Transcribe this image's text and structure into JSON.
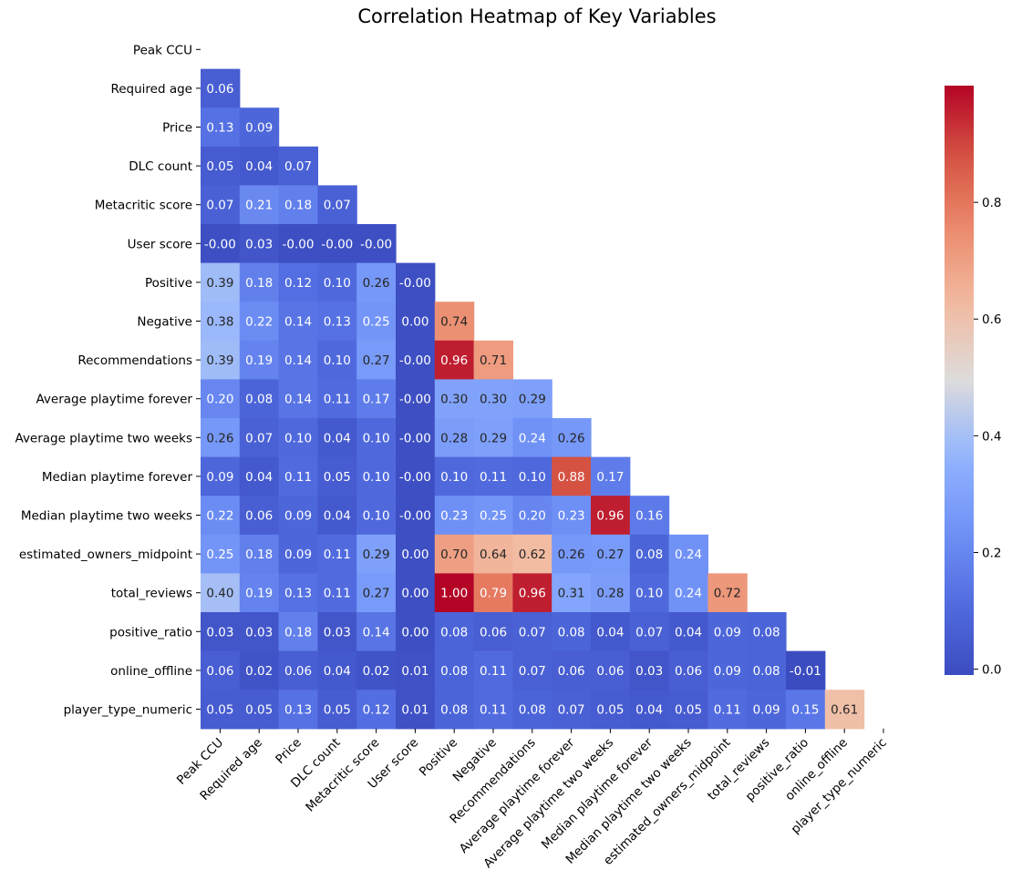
{
  "chart_data": {
    "type": "heatmap",
    "title": "Correlation Heatmap of Key Variables",
    "xlabel": "",
    "ylabel": "",
    "colormap": "coolwarm",
    "value_range": [
      -0.01,
      1.0
    ],
    "mask": "upper-triangle-including-diagonal",
    "annotation_format": "2 decimals",
    "variables": [
      "Peak CCU",
      "Required age",
      "Price",
      "DLC count",
      "Metacritic score",
      "User score",
      "Positive",
      "Negative",
      "Recommendations",
      "Average playtime forever",
      "Average playtime two weeks",
      "Median playtime forever",
      "Median playtime two weeks",
      "estimated_owners_midpoint",
      "total_reviews",
      "positive_ratio",
      "online_offline",
      "player_type_numeric"
    ],
    "rows": [
      [],
      [
        "0.06"
      ],
      [
        "0.13",
        "0.09"
      ],
      [
        "0.05",
        "0.04",
        "0.07"
      ],
      [
        "0.07",
        "0.21",
        "0.18",
        "0.07"
      ],
      [
        "-0.00",
        "0.03",
        "-0.00",
        "-0.00",
        "-0.00"
      ],
      [
        "0.39",
        "0.18",
        "0.12",
        "0.10",
        "0.26",
        "-0.00"
      ],
      [
        "0.38",
        "0.22",
        "0.14",
        "0.13",
        "0.25",
        "0.00",
        "0.74"
      ],
      [
        "0.39",
        "0.19",
        "0.14",
        "0.10",
        "0.27",
        "-0.00",
        "0.96",
        "0.71"
      ],
      [
        "0.20",
        "0.08",
        "0.14",
        "0.11",
        "0.17",
        "-0.00",
        "0.30",
        "0.30",
        "0.29"
      ],
      [
        "0.26",
        "0.07",
        "0.10",
        "0.04",
        "0.10",
        "-0.00",
        "0.28",
        "0.29",
        "0.24",
        "0.26"
      ],
      [
        "0.09",
        "0.04",
        "0.11",
        "0.05",
        "0.10",
        "-0.00",
        "0.10",
        "0.11",
        "0.10",
        "0.88",
        "0.17"
      ],
      [
        "0.22",
        "0.06",
        "0.09",
        "0.04",
        "0.10",
        "-0.00",
        "0.23",
        "0.25",
        "0.20",
        "0.23",
        "0.96",
        "0.16"
      ],
      [
        "0.25",
        "0.18",
        "0.09",
        "0.11",
        "0.29",
        "0.00",
        "0.70",
        "0.64",
        "0.62",
        "0.26",
        "0.27",
        "0.08",
        "0.24"
      ],
      [
        "0.40",
        "0.19",
        "0.13",
        "0.11",
        "0.27",
        "0.00",
        "1.00",
        "0.79",
        "0.96",
        "0.31",
        "0.28",
        "0.10",
        "0.24",
        "0.72"
      ],
      [
        "0.03",
        "0.03",
        "0.18",
        "0.03",
        "0.14",
        "0.00",
        "0.08",
        "0.06",
        "0.07",
        "0.08",
        "0.04",
        "0.07",
        "0.04",
        "0.09",
        "0.08"
      ],
      [
        "0.06",
        "0.02",
        "0.06",
        "0.04",
        "0.02",
        "0.01",
        "0.08",
        "0.11",
        "0.07",
        "0.06",
        "0.06",
        "0.03",
        "0.06",
        "0.09",
        "0.08",
        "-0.01"
      ],
      [
        "0.05",
        "0.05",
        "0.13",
        "0.05",
        "0.12",
        "0.01",
        "0.08",
        "0.11",
        "0.08",
        "0.07",
        "0.05",
        "0.04",
        "0.05",
        "0.11",
        "0.09",
        "0.15",
        "0.61"
      ]
    ],
    "colorbar": {
      "ticks": [
        "0.0",
        "0.2",
        "0.4",
        "0.6",
        "0.8"
      ]
    }
  }
}
